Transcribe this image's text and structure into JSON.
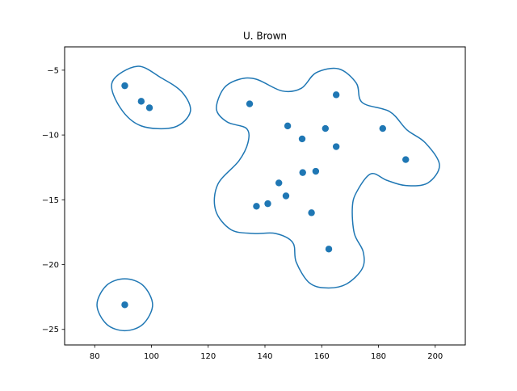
{
  "chart_data": {
    "type": "scatter",
    "title": "U. Brown",
    "xlabel": "",
    "ylabel": "",
    "xlim": [
      69.4,
      210.6
    ],
    "ylim": [
      -26.2,
      -3.2
    ],
    "xticks": [
      80,
      100,
      120,
      140,
      160,
      180,
      200
    ],
    "yticks": [
      -25,
      -20,
      -15,
      -10,
      -5
    ],
    "grid": false,
    "color": "#1f77b4",
    "points": [
      {
        "x": 90.6,
        "y": -6.2
      },
      {
        "x": 96.4,
        "y": -7.4
      },
      {
        "x": 99.3,
        "y": -7.9
      },
      {
        "x": 134.6,
        "y": -7.6
      },
      {
        "x": 165.1,
        "y": -6.9
      },
      {
        "x": 148.0,
        "y": -9.3
      },
      {
        "x": 161.3,
        "y": -9.5
      },
      {
        "x": 153.1,
        "y": -10.3
      },
      {
        "x": 165.1,
        "y": -10.9
      },
      {
        "x": 181.5,
        "y": -9.5
      },
      {
        "x": 189.6,
        "y": -11.9
      },
      {
        "x": 153.3,
        "y": -12.9
      },
      {
        "x": 157.9,
        "y": -12.8
      },
      {
        "x": 144.9,
        "y": -13.7
      },
      {
        "x": 147.4,
        "y": -14.7
      },
      {
        "x": 137.0,
        "y": -15.5
      },
      {
        "x": 141.0,
        "y": -15.3
      },
      {
        "x": 156.4,
        "y": -16.0
      },
      {
        "x": 162.5,
        "y": -18.8
      },
      {
        "x": 90.6,
        "y": -23.1
      }
    ],
    "contours": [
      {
        "closed": true,
        "points": [
          [
            95.0,
            -4.7
          ],
          [
            103.5,
            -5.6
          ],
          [
            110.8,
            -6.7
          ],
          [
            113.7,
            -8.2
          ],
          [
            108.0,
            -9.4
          ],
          [
            96.4,
            -9.3
          ],
          [
            89.0,
            -7.9
          ],
          [
            86.2,
            -5.9
          ]
        ]
      },
      {
        "closed": true,
        "points": [
          [
            90.6,
            -21.1
          ],
          [
            97.0,
            -21.6
          ],
          [
            100.4,
            -23.1
          ],
          [
            97.0,
            -24.6
          ],
          [
            90.6,
            -25.1
          ],
          [
            84.2,
            -24.6
          ],
          [
            80.8,
            -23.1
          ],
          [
            84.2,
            -21.6
          ]
        ]
      },
      {
        "closed": true,
        "points": [
          [
            137.0,
            -5.7
          ],
          [
            146.0,
            -6.6
          ],
          [
            152.8,
            -6.4
          ],
          [
            158.0,
            -5.2
          ],
          [
            166.0,
            -4.9
          ],
          [
            172.2,
            -6.0
          ],
          [
            174.3,
            -7.5
          ],
          [
            184.0,
            -8.2
          ],
          [
            190.0,
            -9.6
          ],
          [
            196.5,
            -10.6
          ],
          [
            201.5,
            -12.3
          ],
          [
            197.4,
            -13.7
          ],
          [
            189.6,
            -13.9
          ],
          [
            183.0,
            -13.5
          ],
          [
            177.3,
            -13.0
          ],
          [
            172.3,
            -14.4
          ],
          [
            170.8,
            -15.6
          ],
          [
            171.5,
            -17.6
          ],
          [
            174.6,
            -19.0
          ],
          [
            174.3,
            -20.3
          ],
          [
            168.7,
            -21.5
          ],
          [
            161.7,
            -21.8
          ],
          [
            155.6,
            -21.4
          ],
          [
            151.0,
            -19.8
          ],
          [
            149.8,
            -18.3
          ],
          [
            143.7,
            -17.6
          ],
          [
            136.0,
            -17.6
          ],
          [
            128.0,
            -17.3
          ],
          [
            122.6,
            -15.8
          ],
          [
            123.4,
            -13.8
          ],
          [
            130.8,
            -12.0
          ],
          [
            134.0,
            -10.6
          ],
          [
            133.5,
            -9.5
          ],
          [
            126.7,
            -9.0
          ],
          [
            122.9,
            -8.0
          ],
          [
            125.5,
            -6.4
          ],
          [
            131.0,
            -5.7
          ]
        ]
      }
    ]
  }
}
